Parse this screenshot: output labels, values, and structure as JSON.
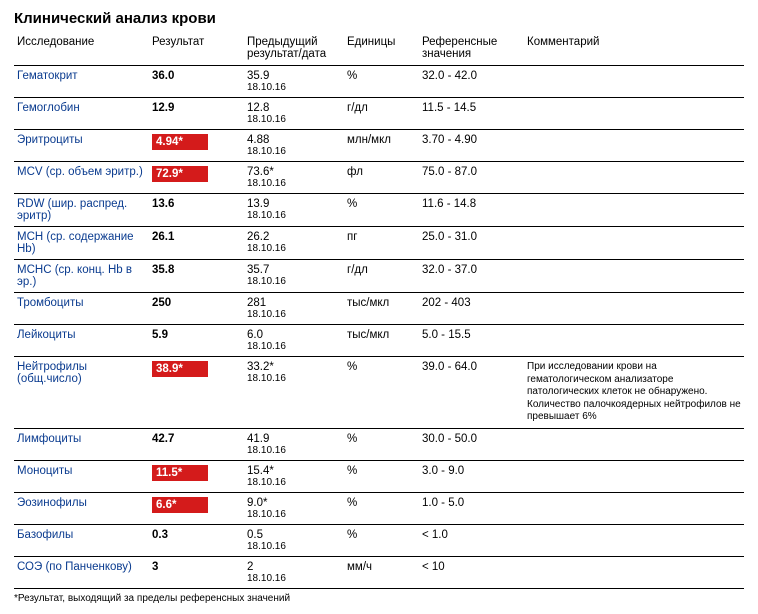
{
  "title": "Клинический анализ крови",
  "columns": {
    "c0": "Исследование",
    "c1": "Результат",
    "c2": "Предыдущий результат/дата",
    "c3": "Единицы",
    "c4": "Референсные значения",
    "c5": "Комментарий"
  },
  "rows": [
    {
      "name": "Гематокрит",
      "result": "36.0",
      "flag": false,
      "prev": "35.9",
      "prev_date": "18.10.16",
      "unit": "%",
      "ref": "32.0 - 42.0",
      "comment": ""
    },
    {
      "name": "Гемоглобин",
      "result": "12.9",
      "flag": false,
      "prev": "12.8",
      "prev_date": "18.10.16",
      "unit": "г/дл",
      "ref": "11.5 - 14.5",
      "comment": ""
    },
    {
      "name": "Эритроциты",
      "result": "4.94*",
      "flag": true,
      "prev": "4.88",
      "prev_date": "18.10.16",
      "unit": "млн/мкл",
      "ref": "3.70 - 4.90",
      "comment": ""
    },
    {
      "name": "MCV (ср. объем эритр.)",
      "result": "72.9*",
      "flag": true,
      "prev": "73.6*",
      "prev_date": "18.10.16",
      "unit": "фл",
      "ref": "75.0 - 87.0",
      "comment": ""
    },
    {
      "name": "RDW (шир. распред. эритр)",
      "result": "13.6",
      "flag": false,
      "prev": "13.9",
      "prev_date": "18.10.16",
      "unit": "%",
      "ref": "11.6 - 14.8",
      "comment": ""
    },
    {
      "name": "MCH (ср. содержание Hb)",
      "result": "26.1",
      "flag": false,
      "prev": "26.2",
      "prev_date": "18.10.16",
      "unit": "пг",
      "ref": "25.0 - 31.0",
      "comment": ""
    },
    {
      "name": "MCHC (ср. конц. Hb в эр.)",
      "result": "35.8",
      "flag": false,
      "prev": "35.7",
      "prev_date": "18.10.16",
      "unit": "г/дл",
      "ref": "32.0 - 37.0",
      "comment": ""
    },
    {
      "name": "Тромбоциты",
      "result": "250",
      "flag": false,
      "prev": "281",
      "prev_date": "18.10.16",
      "unit": "тыс/мкл",
      "ref": "202 - 403",
      "comment": ""
    },
    {
      "name": "Лейкоциты",
      "result": "5.9",
      "flag": false,
      "prev": "6.0",
      "prev_date": "18.10.16",
      "unit": "тыс/мкл",
      "ref": "5.0 - 15.5",
      "comment": ""
    },
    {
      "name": "Нейтрофилы (общ.число)",
      "result": "38.9*",
      "flag": true,
      "prev": "33.2*",
      "prev_date": "18.10.16",
      "unit": "%",
      "ref": "39.0 - 64.0",
      "comment": "При исследовании крови на гематологическом анализаторе патологических клеток не обнаружено. Количество палочкоядерных нейтрофилов не превышает 6%"
    },
    {
      "name": "Лимфоциты",
      "result": "42.7",
      "flag": false,
      "prev": "41.9",
      "prev_date": "18.10.16",
      "unit": "%",
      "ref": "30.0 - 50.0",
      "comment": ""
    },
    {
      "name": "Моноциты",
      "result": "11.5*",
      "flag": true,
      "prev": "15.4*",
      "prev_date": "18.10.16",
      "unit": "%",
      "ref": "3.0 - 9.0",
      "comment": ""
    },
    {
      "name": "Эозинофилы",
      "result": "6.6*",
      "flag": true,
      "prev": "9.0*",
      "prev_date": "18.10.16",
      "unit": "%",
      "ref": "1.0 - 5.0",
      "comment": ""
    },
    {
      "name": "Базофилы",
      "result": "0.3",
      "flag": false,
      "prev": "0.5",
      "prev_date": "18.10.16",
      "unit": "%",
      "ref": "< 1.0",
      "comment": ""
    },
    {
      "name": "СОЭ (по Панченкову)",
      "result": "3",
      "flag": false,
      "prev": "2",
      "prev_date": "18.10.16",
      "unit": "мм/ч",
      "ref": "< 10",
      "comment": ""
    }
  ],
  "footnote": "*Результат, выходящий за пределы референсных значений",
  "colors": {
    "link": "#0a3b8f",
    "flag_bg": "#d41b1b",
    "flag_text": "#ffffff",
    "border": "#000000",
    "bg": "#ffffff"
  }
}
